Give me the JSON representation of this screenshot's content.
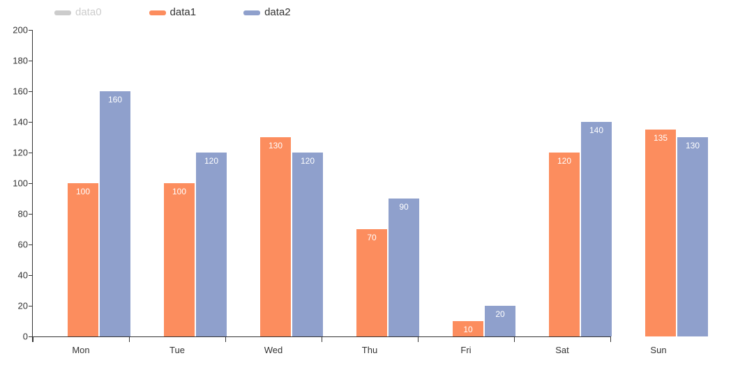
{
  "legend": {
    "items": [
      {
        "label": "data0",
        "marker_color": "#cccccc",
        "text_color": "#cccccc",
        "selected": false
      },
      {
        "label": "data1",
        "marker_color": "#fc8d5e",
        "text_color": "#333333",
        "selected": true
      },
      {
        "label": "data2",
        "marker_color": "#8fa0cc",
        "text_color": "#333333",
        "selected": true
      }
    ]
  },
  "chart_data": {
    "type": "bar",
    "title": "",
    "xlabel": "",
    "ylabel": "",
    "categories": [
      "Mon",
      "Tue",
      "Wed",
      "Thu",
      "Fri",
      "Sat",
      "Sun"
    ],
    "series": [
      {
        "name": "data0",
        "color": "#cccccc",
        "visible": false,
        "values": []
      },
      {
        "name": "data1",
        "color": "#fc8d5e",
        "visible": true,
        "values": [
          100,
          100,
          130,
          70,
          10,
          120,
          135
        ]
      },
      {
        "name": "data2",
        "color": "#8fa0cc",
        "visible": true,
        "values": [
          160,
          120,
          120,
          90,
          20,
          140,
          130
        ]
      }
    ],
    "ylim": [
      0,
      200
    ],
    "yticks": [
      0,
      20,
      40,
      60,
      80,
      100,
      120,
      140,
      160,
      180,
      200
    ],
    "grid": false,
    "legend_position": "top-left",
    "axis_color": "#333333",
    "bar_value_labels": {
      "position": "inside-top",
      "color": "#ffffff"
    }
  }
}
